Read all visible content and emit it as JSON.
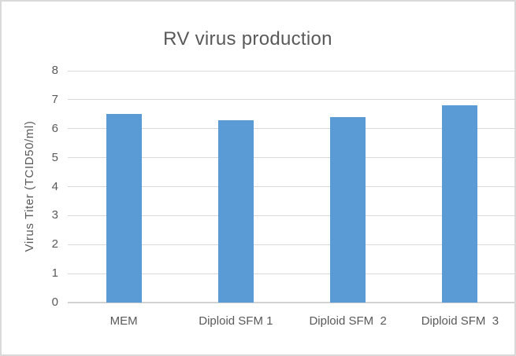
{
  "window": {
    "background_color": "#ffffff",
    "border_color": "#d9d9d9"
  },
  "chart_data": {
    "type": "bar",
    "title": "RV virus production",
    "categories": [
      "MEM",
      "Diploid SFM 1",
      "Diploid SFM  2",
      "Diploid SFM  3"
    ],
    "values": [
      6.5,
      6.3,
      6.4,
      6.8
    ],
    "xlabel": "",
    "ylabel": "Virus Titer (TCID50/ml)",
    "ylim": [
      0,
      8
    ],
    "y_ticks": [
      0,
      1,
      2,
      3,
      4,
      5,
      6,
      7,
      8
    ],
    "grid": true,
    "legend": false,
    "bar_color": "#5b9bd5",
    "text_color": "#595959",
    "gridline_color": "#d9d9d9"
  }
}
